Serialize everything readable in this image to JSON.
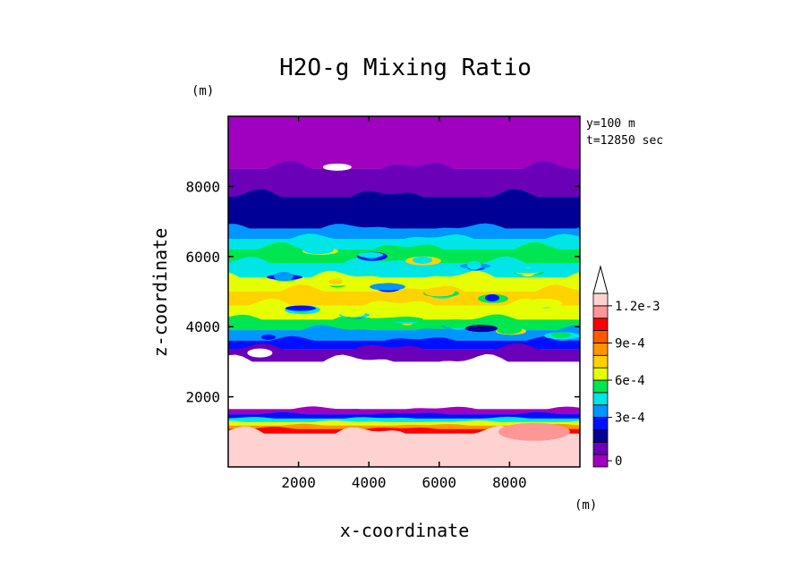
{
  "chart_data": {
    "type": "heatmap",
    "title": "H2O-g Mixing Ratio",
    "xlabel": "x-coordinate",
    "ylabel": "z-coordinate",
    "x_unit": "(m)",
    "y_unit": "(m)",
    "annotations": [
      "y=100 m",
      "t=12850 sec"
    ],
    "xlim": [
      0,
      10000
    ],
    "ylim": [
      0,
      10000
    ],
    "x_ticks": [
      2000,
      4000,
      6000,
      8000
    ],
    "y_ticks": [
      2000,
      4000,
      6000,
      8000
    ],
    "x_tick_labels": [
      "2000",
      "4000",
      "6000",
      "8000"
    ],
    "y_tick_labels": [
      "2000",
      "4000",
      "6000",
      "8000"
    ],
    "colorbar": {
      "levels": [
        0,
        0.0001,
        0.0002,
        0.0003,
        0.0004,
        0.0005,
        0.0006,
        0.0007,
        0.0008,
        0.0009,
        0.001,
        0.0011,
        0.0012
      ],
      "colors": [
        "#a000c0",
        "#6a00b8",
        "#000096",
        "#0010ff",
        "#0096ff",
        "#00e6e6",
        "#00e650",
        "#e6ff00",
        "#ffd200",
        "#ff9600",
        "#ff5a00",
        "#ff0000",
        "#ff9696",
        "#ffd2d2"
      ],
      "tick_values": [
        0,
        0.0003,
        0.0006,
        0.0009,
        0.0012
      ],
      "tick_labels": [
        "0",
        "3e-4",
        "6e-4",
        "9e-4",
        "1.2e-3"
      ],
      "extend": "max"
    },
    "layers": [
      {
        "z_bottom": 8500,
        "z_top": 10000,
        "level_index": 0
      },
      {
        "z_bottom": 7700,
        "z_top": 8500,
        "level_index": 1
      },
      {
        "z_bottom": 6800,
        "z_top": 7700,
        "level_index": 2
      },
      {
        "z_bottom": 6500,
        "z_top": 6800,
        "level_index": 4
      },
      {
        "z_bottom": 6200,
        "z_top": 6500,
        "level_index": 5
      },
      {
        "z_bottom": 5800,
        "z_top": 6200,
        "level_index": 6
      },
      {
        "z_bottom": 5400,
        "z_top": 5800,
        "level_index": 5
      },
      {
        "z_bottom": 5000,
        "z_top": 5400,
        "level_index": 7
      },
      {
        "z_bottom": 4600,
        "z_top": 5000,
        "level_index": 8
      },
      {
        "z_bottom": 4200,
        "z_top": 4600,
        "level_index": 7
      },
      {
        "z_bottom": 3900,
        "z_top": 4200,
        "level_index": 6
      },
      {
        "z_bottom": 3600,
        "z_top": 3900,
        "level_index": 4
      },
      {
        "z_bottom": 3350,
        "z_top": 3600,
        "level_index": 3
      },
      {
        "z_bottom": 3000,
        "z_top": 3350,
        "level_index": 1
      },
      {
        "z_bottom": 1650,
        "z_top": 3000,
        "level_index": -1
      },
      {
        "z_bottom": 1500,
        "z_top": 1650,
        "level_index": 0
      },
      {
        "z_bottom": 1380,
        "z_top": 1500,
        "level_index": 3
      },
      {
        "z_bottom": 1280,
        "z_top": 1380,
        "level_index": 5
      },
      {
        "z_bottom": 1180,
        "z_top": 1280,
        "level_index": 7
      },
      {
        "z_bottom": 1080,
        "z_top": 1180,
        "level_index": 9
      },
      {
        "z_bottom": 950,
        "z_top": 1080,
        "level_index": 11
      },
      {
        "z_bottom": 0,
        "z_top": 950,
        "level_index": 13
      }
    ]
  }
}
